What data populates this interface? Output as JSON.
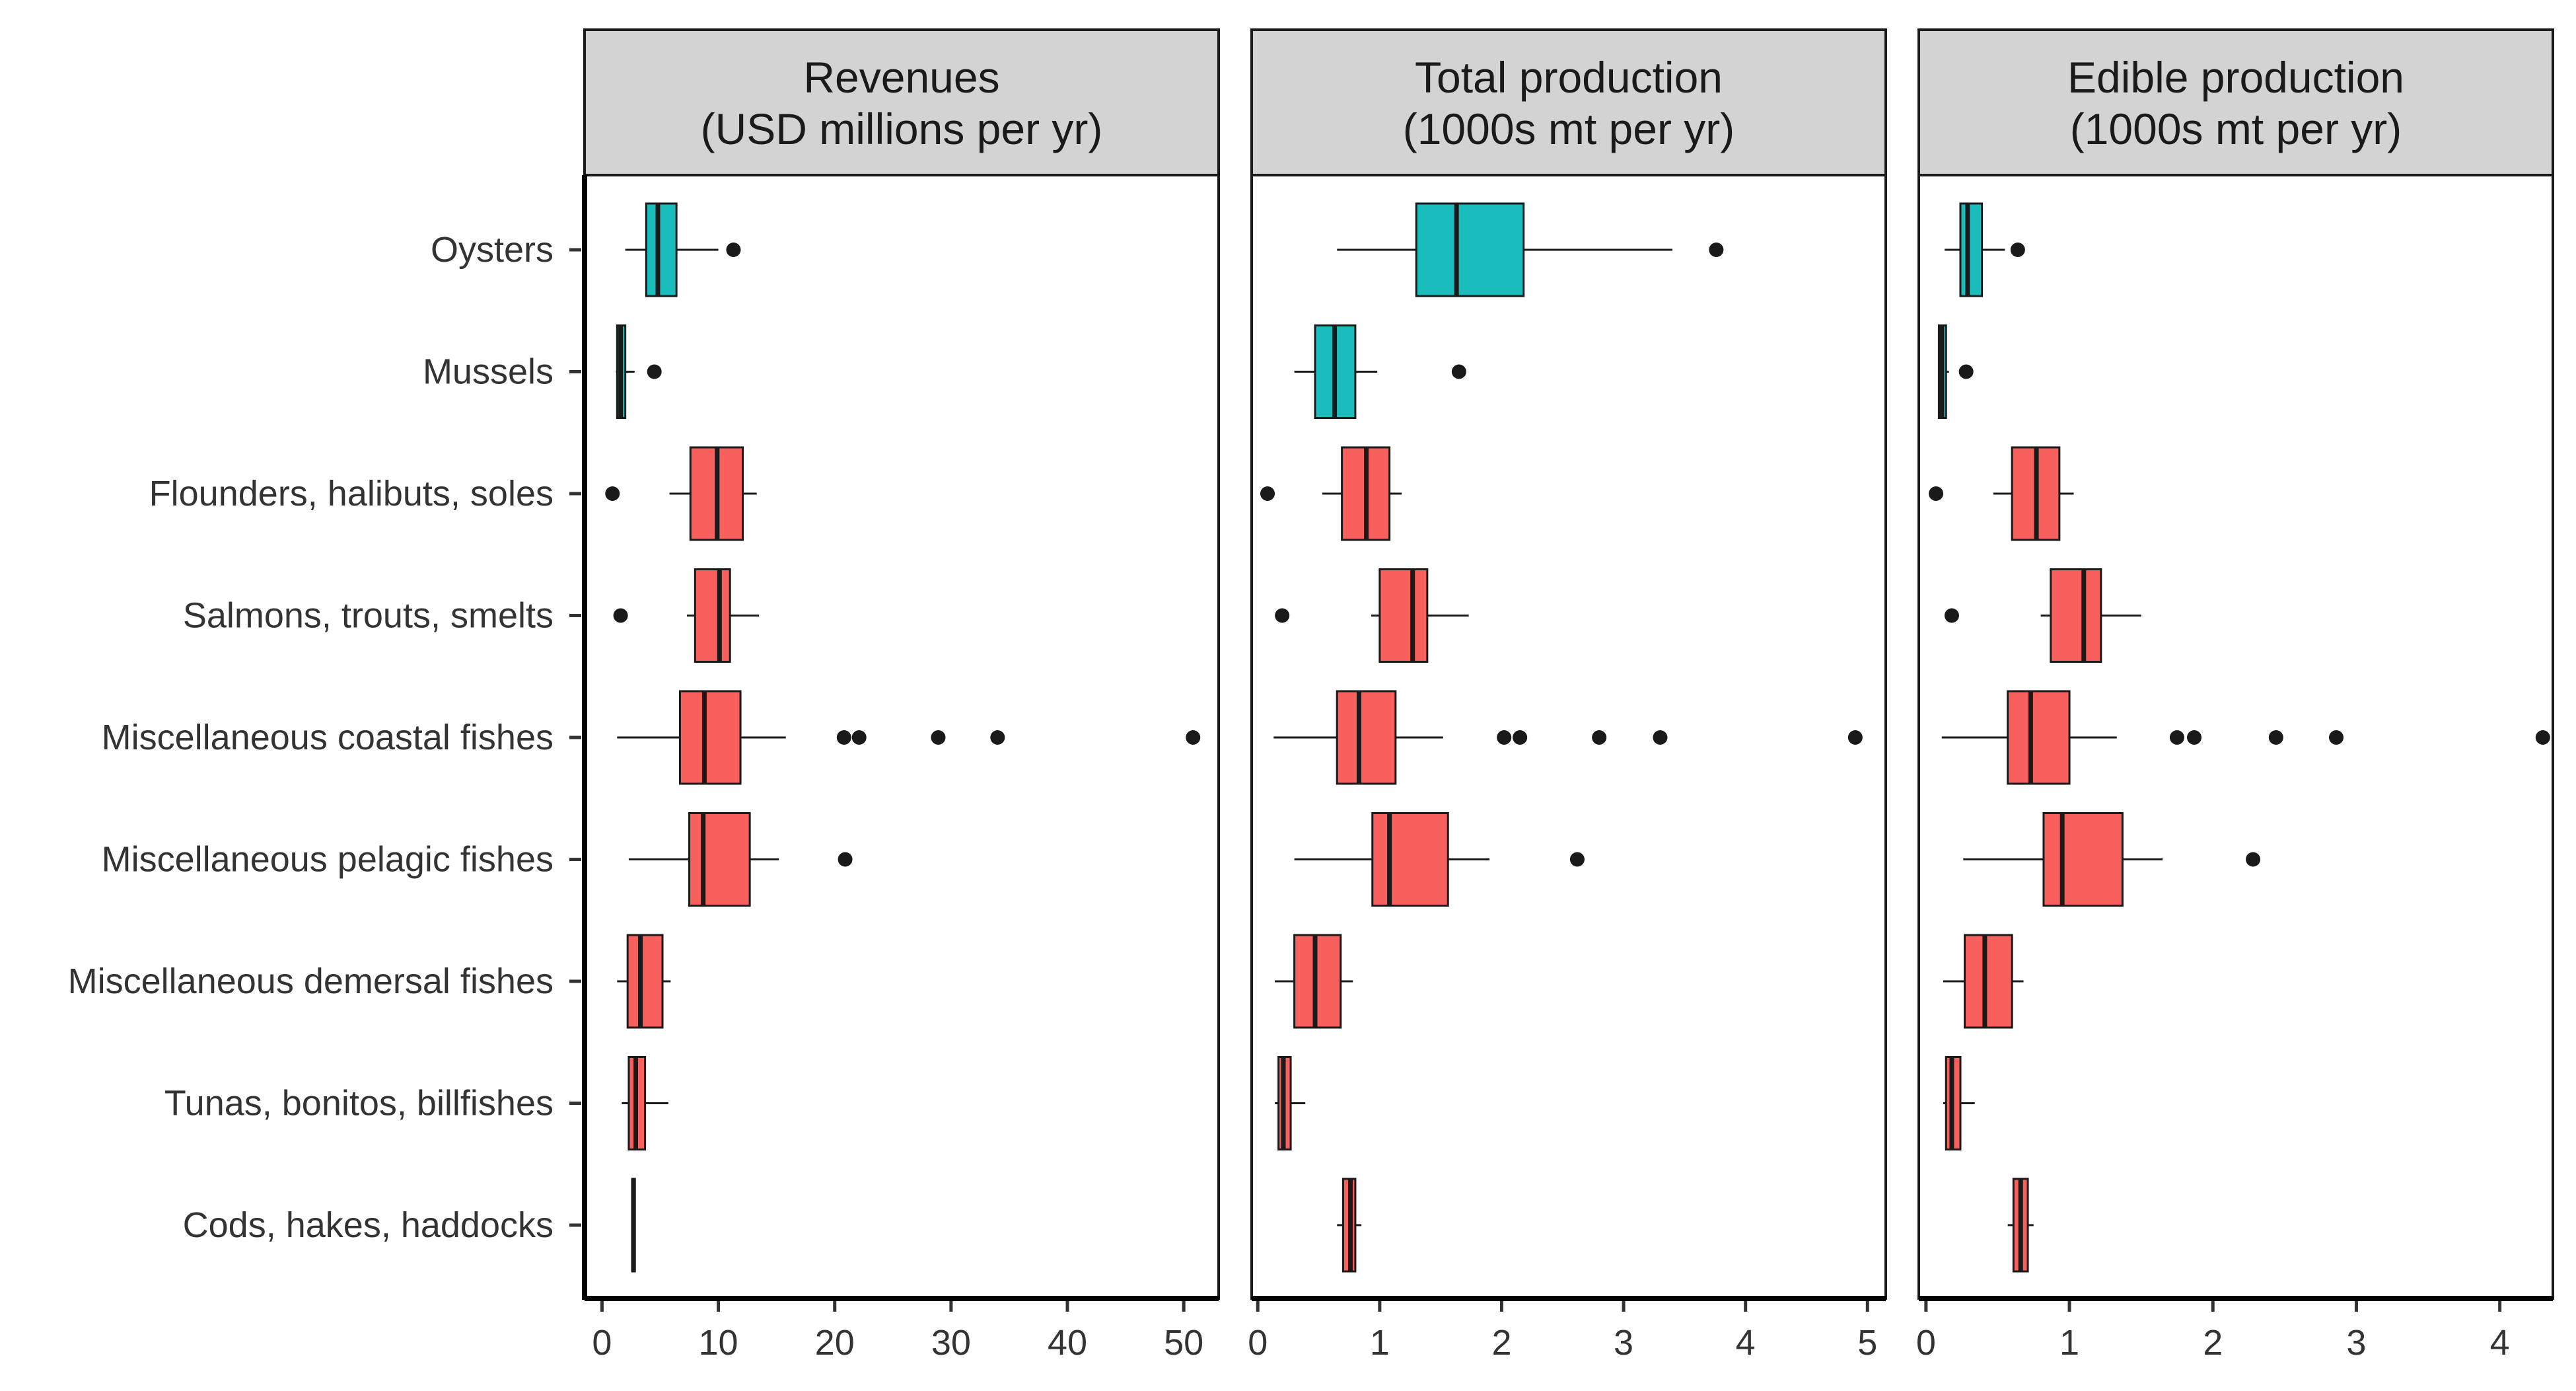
{
  "chart_data": {
    "type": "boxplot",
    "categories": [
      "Oysters",
      "Mussels",
      "Flounders, halibuts, soles",
      "Salmons, trouts, smelts",
      "Miscellaneous coastal fishes",
      "Miscellaneous pelagic fishes",
      "Miscellaneous demersal fishes",
      "Tunas, bonitos, billfishes",
      "Cods, hakes, haddocks"
    ],
    "group_colors": {
      "bivalves": "#1ABCBC",
      "finfish": "#F8605E"
    },
    "category_groups": [
      "bivalves",
      "bivalves",
      "finfish",
      "finfish",
      "finfish",
      "finfish",
      "finfish",
      "finfish",
      "finfish"
    ],
    "panels": [
      {
        "title_line1": "Revenues",
        "title_line2": "(USD millions per yr)",
        "xlim": [
          -1.5,
          53
        ],
        "ticks": [
          0,
          10,
          20,
          30,
          40,
          50
        ],
        "tick_labels": [
          "0",
          "10",
          "20",
          "30",
          "40",
          "50"
        ],
        "boxes": [
          {
            "whisker_low": 2.0,
            "q1": 3.8,
            "median": 4.8,
            "q3": 6.4,
            "whisker_high": 10.0,
            "outliers": [
              11.3
            ]
          },
          {
            "whisker_low": 1.2,
            "q1": 1.3,
            "median": 1.6,
            "q3": 2.0,
            "whisker_high": 2.8,
            "outliers": [
              4.5
            ]
          },
          {
            "whisker_low": 5.8,
            "q1": 7.6,
            "median": 9.9,
            "q3": 12.1,
            "whisker_high": 13.3,
            "outliers": [
              0.9
            ]
          },
          {
            "whisker_low": 7.3,
            "q1": 8.0,
            "median": 10.1,
            "q3": 11.0,
            "whisker_high": 13.5,
            "outliers": [
              1.6
            ]
          },
          {
            "whisker_low": 1.3,
            "q1": 6.7,
            "median": 8.8,
            "q3": 11.9,
            "whisker_high": 15.8,
            "outliers": [
              20.8,
              22.1,
              28.9,
              34.0,
              50.8
            ]
          },
          {
            "whisker_low": 2.3,
            "q1": 7.5,
            "median": 8.7,
            "q3": 12.7,
            "whisker_high": 15.2,
            "outliers": [
              20.9
            ]
          },
          {
            "whisker_low": 1.3,
            "q1": 2.2,
            "median": 3.3,
            "q3": 5.2,
            "whisker_high": 5.9,
            "outliers": []
          },
          {
            "whisker_low": 1.7,
            "q1": 2.3,
            "median": 2.9,
            "q3": 3.7,
            "whisker_high": 5.7,
            "outliers": []
          },
          {
            "whisker_low": 2.6,
            "q1": 2.6,
            "median": 2.7,
            "q3": 2.8,
            "whisker_high": 2.8,
            "outliers": []
          }
        ]
      },
      {
        "title_line1": "Total production",
        "title_line2": "(1000s mt per yr)",
        "xlim": [
          -0.05,
          5.15
        ],
        "ticks": [
          0,
          1,
          2,
          3,
          4,
          5
        ],
        "tick_labels": [
          "0",
          "1",
          "2",
          "3",
          "4",
          "5"
        ],
        "boxes": [
          {
            "whisker_low": 0.65,
            "q1": 1.3,
            "median": 1.63,
            "q3": 2.18,
            "whisker_high": 3.4,
            "outliers": [
              3.76
            ]
          },
          {
            "whisker_low": 0.3,
            "q1": 0.47,
            "median": 0.63,
            "q3": 0.8,
            "whisker_high": 0.98,
            "outliers": [
              1.65
            ]
          },
          {
            "whisker_low": 0.53,
            "q1": 0.69,
            "median": 0.89,
            "q3": 1.08,
            "whisker_high": 1.18,
            "outliers": [
              0.08
            ]
          },
          {
            "whisker_low": 0.93,
            "q1": 1.0,
            "median": 1.27,
            "q3": 1.39,
            "whisker_high": 1.73,
            "outliers": [
              0.2
            ]
          },
          {
            "whisker_low": 0.13,
            "q1": 0.65,
            "median": 0.83,
            "q3": 1.13,
            "whisker_high": 1.52,
            "outliers": [
              2.02,
              2.15,
              2.8,
              3.3,
              4.9
            ]
          },
          {
            "whisker_low": 0.3,
            "q1": 0.94,
            "median": 1.08,
            "q3": 1.56,
            "whisker_high": 1.9,
            "outliers": [
              2.62
            ]
          },
          {
            "whisker_low": 0.14,
            "q1": 0.3,
            "median": 0.47,
            "q3": 0.68,
            "whisker_high": 0.78,
            "outliers": []
          },
          {
            "whisker_low": 0.14,
            "q1": 0.17,
            "median": 0.21,
            "q3": 0.27,
            "whisker_high": 0.39,
            "outliers": []
          },
          {
            "whisker_low": 0.65,
            "q1": 0.7,
            "median": 0.76,
            "q3": 0.8,
            "whisker_high": 0.85,
            "outliers": []
          }
        ]
      },
      {
        "title_line1": "Edible production",
        "title_line2": "(1000s mt per yr)",
        "xlim": [
          -0.05,
          4.37
        ],
        "ticks": [
          0,
          1,
          2,
          3,
          4
        ],
        "tick_labels": [
          "0",
          "1",
          "2",
          "3",
          "4"
        ],
        "boxes": [
          {
            "whisker_low": 0.13,
            "q1": 0.24,
            "median": 0.29,
            "q3": 0.39,
            "whisker_high": 0.55,
            "outliers": [
              0.64
            ]
          },
          {
            "whisker_low": 0.09,
            "q1": 0.09,
            "median": 0.11,
            "q3": 0.14,
            "whisker_high": 0.16,
            "outliers": [
              0.28
            ]
          },
          {
            "whisker_low": 0.47,
            "q1": 0.6,
            "median": 0.77,
            "q3": 0.93,
            "whisker_high": 1.03,
            "outliers": [
              0.07
            ]
          },
          {
            "whisker_low": 0.8,
            "q1": 0.87,
            "median": 1.1,
            "q3": 1.22,
            "whisker_high": 1.5,
            "outliers": [
              0.18
            ]
          },
          {
            "whisker_low": 0.11,
            "q1": 0.57,
            "median": 0.73,
            "q3": 1.0,
            "whisker_high": 1.33,
            "outliers": [
              1.75,
              1.87,
              2.44,
              2.86,
              4.3
            ]
          },
          {
            "whisker_low": 0.26,
            "q1": 0.82,
            "median": 0.95,
            "q3": 1.37,
            "whisker_high": 1.65,
            "outliers": [
              2.28
            ]
          },
          {
            "whisker_low": 0.12,
            "q1": 0.27,
            "median": 0.41,
            "q3": 0.6,
            "whisker_high": 0.68,
            "outliers": []
          },
          {
            "whisker_low": 0.12,
            "q1": 0.14,
            "median": 0.18,
            "q3": 0.24,
            "whisker_high": 0.34,
            "outliers": []
          },
          {
            "whisker_low": 0.57,
            "q1": 0.61,
            "median": 0.66,
            "q3": 0.71,
            "whisker_high": 0.75,
            "outliers": []
          }
        ]
      }
    ]
  }
}
